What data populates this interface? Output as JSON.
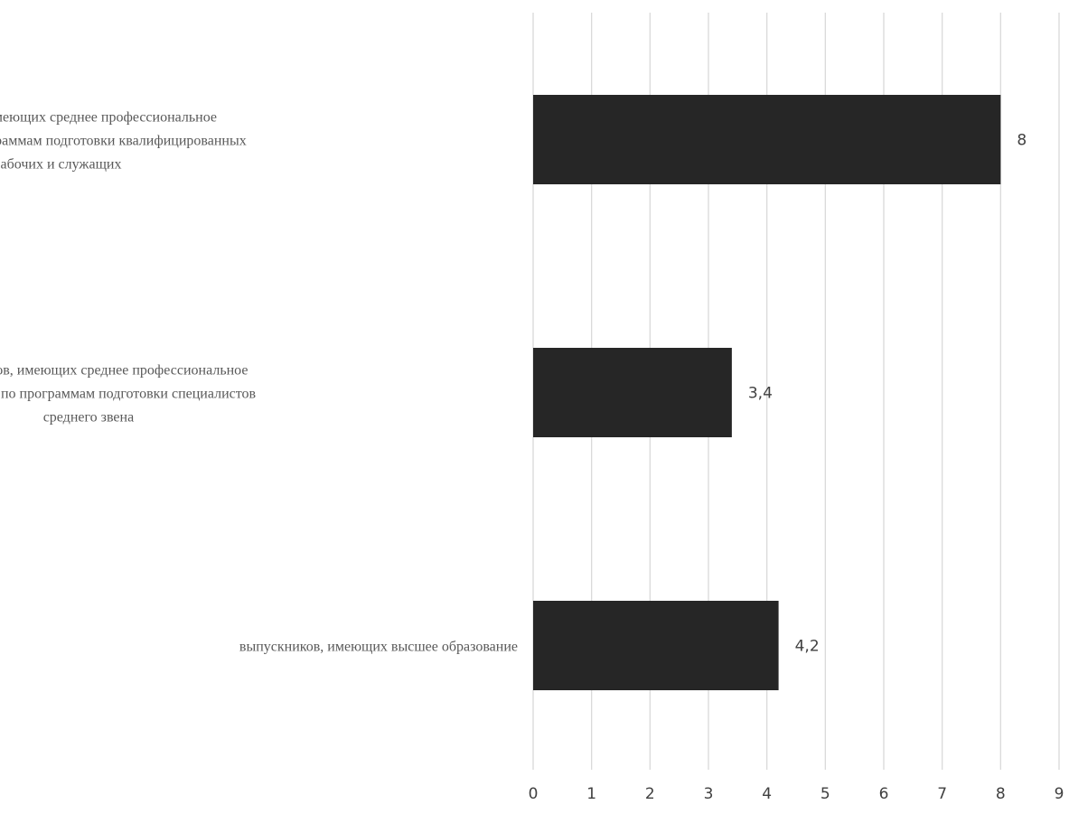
{
  "chart_data": {
    "type": "bar",
    "orientation": "horizontal",
    "categories": [
      [
        "выпускников, имеющих среднее профессиональное",
        "образование по программам подготовки квалифицированных",
        "рабочих и служащих"
      ],
      [
        "выпускников, имеющих среднее профессиональное",
        "образование по программам подготовки специалистов",
        "среднего звена"
      ],
      [
        "выпускников, имеющих высшее образование"
      ]
    ],
    "values": [
      8,
      3.4,
      4.2
    ],
    "data_labels": [
      "8",
      "3,4",
      "4,2"
    ],
    "xlim": [
      0,
      9
    ],
    "x_ticks": [
      0,
      1,
      2,
      3,
      4,
      5,
      6,
      7,
      8,
      9
    ],
    "x_tick_labels": [
      "0",
      "1",
      "2",
      "3",
      "4",
      "5",
      "6",
      "7",
      "8",
      "9"
    ],
    "grid": "vertical",
    "legend": "none",
    "colors": {
      "bar": "#262626",
      "grid": "#d9d9d9",
      "tick_text": "#404040",
      "category_text": "#595959"
    }
  }
}
